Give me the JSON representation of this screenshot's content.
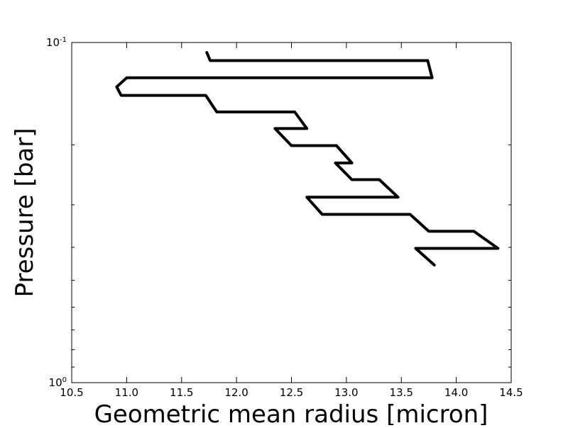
{
  "chart_data": {
    "type": "line",
    "title": "",
    "xlabel": "Geometric mean radius [micron]",
    "ylabel": "Pressure [bar]",
    "xlim": [
      10.5,
      14.5
    ],
    "ylim": [
      0.1,
      1.0
    ],
    "yscale": "log",
    "y_inverted": true,
    "grid": false,
    "legend": "none",
    "line_color": "#000000",
    "x_ticks": [
      10.5,
      11.0,
      11.5,
      12.0,
      12.5,
      13.0,
      13.5,
      14.0,
      14.5
    ],
    "x_tick_labels": [
      "10.5",
      "11.0",
      "11.5",
      "12.0",
      "12.5",
      "13.0",
      "13.5",
      "14.0",
      "14.5"
    ],
    "y_major_ticks": [
      {
        "value": 0.1,
        "base": "10",
        "exponent": "-1"
      },
      {
        "value": 1.0,
        "base": "10",
        "exponent": "0"
      }
    ],
    "y_minor_ticks": [
      0.2,
      0.3,
      0.4,
      0.5,
      0.6,
      0.7,
      0.8,
      0.9
    ],
    "series": [
      {
        "x": [
          11.73,
          11.76,
          13.74,
          13.78,
          11.0,
          10.91,
          10.95,
          11.72,
          11.82,
          12.53,
          12.64,
          12.35,
          12.5,
          12.91,
          13.05,
          12.9,
          13.05,
          13.3,
          13.47,
          12.64,
          12.78,
          13.58,
          13.75,
          14.16,
          14.38,
          13.63,
          13.8
        ],
        "y": [
          0.107,
          0.113,
          0.113,
          0.127,
          0.127,
          0.135,
          0.143,
          0.143,
          0.16,
          0.16,
          0.179,
          0.179,
          0.201,
          0.201,
          0.226,
          0.226,
          0.253,
          0.253,
          0.285,
          0.285,
          0.32,
          0.32,
          0.359,
          0.359,
          0.403,
          0.403,
          0.451
        ]
      }
    ]
  }
}
